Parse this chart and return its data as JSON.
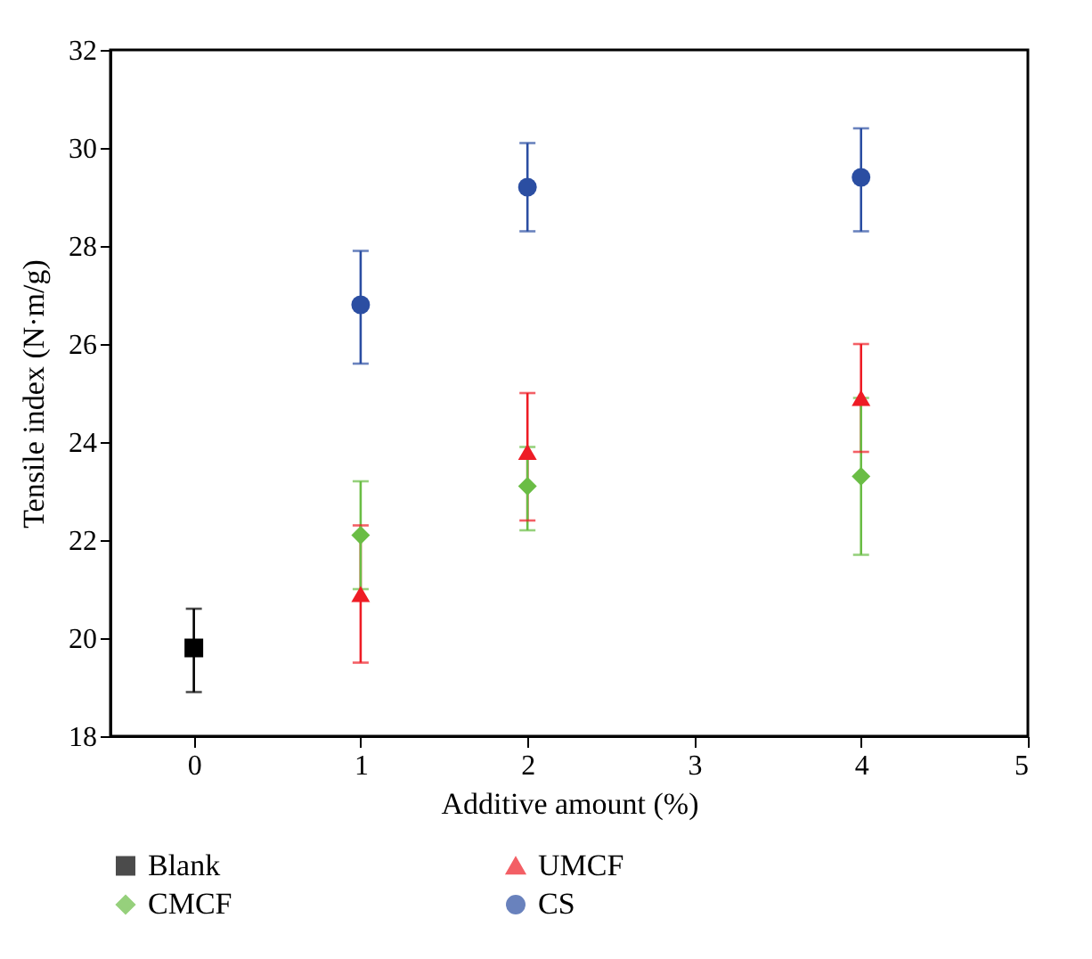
{
  "chart_data": {
    "type": "scatter",
    "xlabel": "Additive amount (%)",
    "ylabel": "Tensile index (N·m/g)",
    "xlim": [
      -0.5,
      5
    ],
    "xticks": [
      0,
      1,
      2,
      3,
      4,
      5
    ],
    "ylim": [
      18,
      32
    ],
    "yticks": [
      18,
      20,
      22,
      24,
      26,
      28,
      30,
      32
    ],
    "grid": false,
    "legend": "bottom",
    "series": [
      {
        "name": "Blank",
        "color": "#000000",
        "marker": "square",
        "x": [
          0
        ],
        "values": [
          19.8
        ],
        "errors": [
          [
            18.9,
            20.6
          ]
        ]
      },
      {
        "name": "UMCF",
        "color": "#ee1c25",
        "marker": "triangle",
        "x": [
          1,
          2,
          4
        ],
        "values": [
          20.9,
          23.8,
          24.9
        ],
        "errors": [
          [
            19.5,
            22.3
          ],
          [
            22.4,
            25.0
          ],
          [
            23.8,
            26.0
          ]
        ]
      },
      {
        "name": "CMCF",
        "color": "#6abd45",
        "marker": "diamond",
        "x": [
          1,
          2,
          4
        ],
        "values": [
          22.1,
          23.1,
          23.3
        ],
        "errors": [
          [
            21.0,
            23.2
          ],
          [
            22.2,
            23.9
          ],
          [
            21.7,
            24.9
          ]
        ]
      },
      {
        "name": "CS",
        "color": "#2b4ea2",
        "marker": "circle",
        "x": [
          1,
          2,
          4
        ],
        "values": [
          26.8,
          29.2,
          29.4
        ],
        "errors": [
          [
            25.6,
            27.9
          ],
          [
            28.3,
            30.1
          ],
          [
            28.3,
            30.4
          ]
        ]
      }
    ]
  }
}
